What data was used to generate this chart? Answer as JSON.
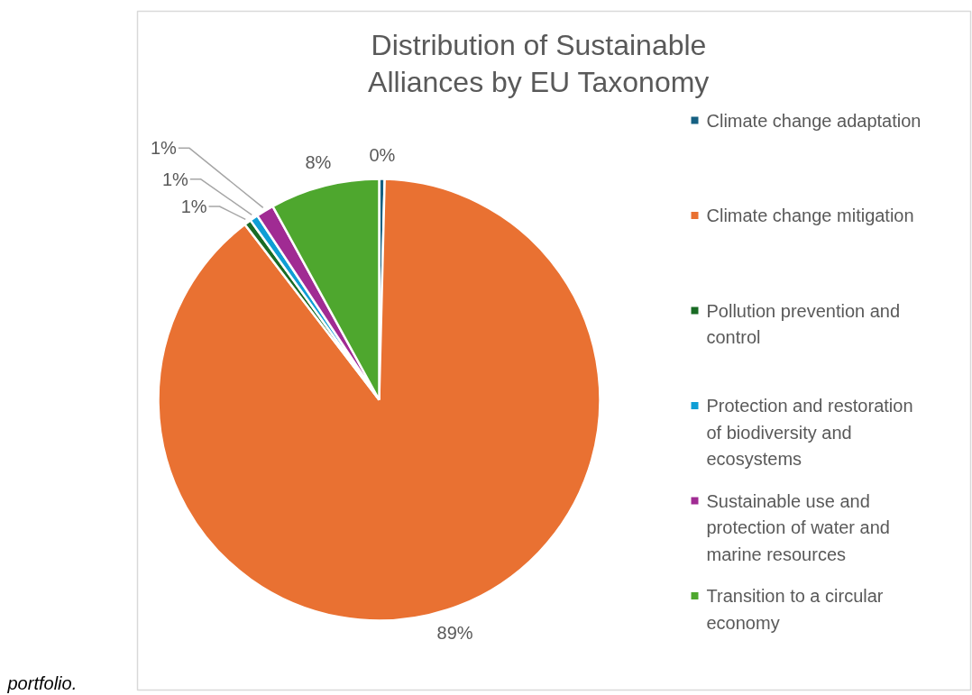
{
  "chart_data": {
    "type": "pie",
    "title": "Distribution of Sustainable Alliances by EU Taxonomy",
    "categories": [
      "Climate change adaptation",
      "Climate change mitigation",
      "Pollution prevention and control",
      "Protection and restoration of biodiversity and ecosystems",
      "Sustainable use and protection of water and marine resources",
      "Transition to a circular economy"
    ],
    "values": [
      0.4,
      89.2,
      0.5,
      0.6,
      1.3,
      8.0
    ],
    "value_labels": [
      "0%",
      "89%",
      "1%",
      "1%",
      "1%",
      "8%"
    ],
    "colors": [
      "#156082",
      "#e97132",
      "#196b24",
      "#0f9ed5",
      "#a02b93",
      "#4ea72e"
    ],
    "legend": "right",
    "annotations": [
      "portfolio."
    ]
  }
}
